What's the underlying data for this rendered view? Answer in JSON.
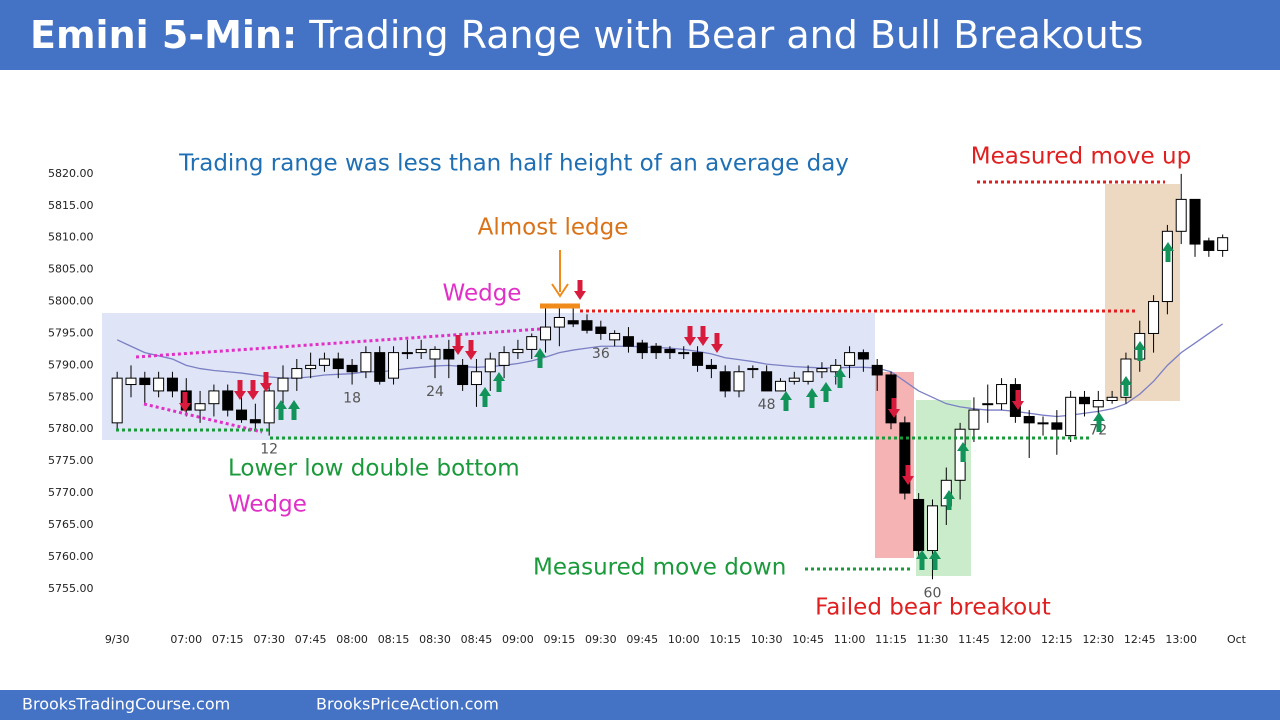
{
  "header": {
    "title_bold": "Emini 5-Min:",
    "title_rest": "Trading Range with Bear and Bull Breakouts"
  },
  "footer": {
    "left": "BrooksTradingCourse.com",
    "right": "BrooksPriceAction.com"
  },
  "chart_data": {
    "type": "candlestick",
    "x": [
      1,
      2,
      3,
      4,
      5,
      6,
      7,
      8,
      9,
      10,
      11,
      12,
      13,
      14,
      15,
      16,
      17,
      18,
      19,
      20,
      21,
      22,
      23,
      24,
      25,
      26,
      27,
      28,
      29,
      30,
      31,
      32,
      33,
      34,
      35,
      36,
      37,
      38,
      39,
      40,
      41,
      42,
      43,
      44,
      45,
      46,
      47,
      48,
      49,
      50,
      51,
      52,
      53,
      54,
      55,
      56,
      57,
      58,
      59,
      60,
      61,
      62,
      63,
      64,
      65,
      66,
      67,
      68,
      69,
      70,
      71,
      72,
      73,
      74,
      75,
      76,
      77,
      78,
      79,
      80,
      81
    ],
    "open": [
      5781,
      5787,
      5788,
      5786,
      5788,
      5786,
      5783,
      5784,
      5786,
      5783,
      5781.5,
      5781,
      5786,
      5788,
      5789.5,
      5790,
      5791,
      5790,
      5789,
      5792,
      5788,
      5792,
      5792,
      5791,
      5792.5,
      5790,
      5787,
      5789,
      5790,
      5792,
      5792.5,
      5794,
      5796,
      5797,
      5797,
      5796,
      5794,
      5794.5,
      5793.5,
      5793,
      5792.5,
      5792,
      5792,
      5790,
      5789,
      5786,
      5789.5,
      5789,
      5786,
      5787.5,
      5787.5,
      5789,
      5789,
      5790,
      5792,
      5790,
      5788.5,
      5781,
      5769,
      5761,
      5768,
      5772,
      5780,
      5784,
      5784,
      5787,
      5782,
      5781,
      5781,
      5779,
      5785,
      5783.5,
      5784.5,
      5785,
      5791,
      5795,
      5800,
      5811,
      5816,
      5809.5,
      5808
    ],
    "high": [
      5789,
      5790,
      5789,
      5789,
      5789,
      5788,
      5786,
      5787,
      5787,
      5785,
      5784,
      5787,
      5790,
      5791,
      5792,
      5792,
      5792,
      5791,
      5793,
      5793,
      5793,
      5794,
      5794,
      5793,
      5794,
      5791,
      5791,
      5792,
      5793,
      5794,
      5795,
      5799,
      5799,
      5799,
      5798,
      5797,
      5795.5,
      5796,
      5794,
      5793.5,
      5793,
      5793,
      5793,
      5791,
      5790,
      5790,
      5790,
      5790,
      5788,
      5789,
      5790,
      5790.5,
      5791,
      5793,
      5792.5,
      5791,
      5789,
      5782,
      5770,
      5769,
      5774,
      5781,
      5785,
      5787,
      5788,
      5788,
      5783,
      5782,
      5783,
      5786,
      5786,
      5786,
      5786,
      5792,
      5797,
      5801,
      5812,
      5820,
      5816,
      5810,
      5810.5
    ],
    "low": [
      5780,
      5785,
      5784,
      5785,
      5785,
      5782,
      5781,
      5782,
      5782,
      5781,
      5780,
      5779,
      5784,
      5786,
      5788,
      5789,
      5788,
      5787,
      5788,
      5787,
      5787,
      5791,
      5791,
      5788,
      5788,
      5786,
      5783.5,
      5786,
      5788,
      5791,
      5791,
      5792,
      5793,
      5796,
      5795,
      5794,
      5793,
      5792,
      5791,
      5791,
      5791,
      5791,
      5789,
      5788,
      5785,
      5785,
      5788,
      5786,
      5786,
      5787,
      5787,
      5788,
      5787,
      5788,
      5789,
      5786,
      5780,
      5769,
      5760,
      5756.5,
      5765,
      5769,
      5778,
      5781,
      5783,
      5781,
      5775.5,
      5779,
      5776,
      5778,
      5782,
      5782,
      5784,
      5784,
      5789,
      5792,
      5798,
      5809,
      5807,
      5807,
      5807
    ],
    "close": [
      5788,
      5788,
      5787,
      5788,
      5786,
      5783,
      5784,
      5786,
      5783,
      5781.5,
      5781,
      5786,
      5788,
      5789.5,
      5790,
      5791,
      5789.5,
      5789,
      5792,
      5787.5,
      5792,
      5792,
      5792.5,
      5792.5,
      5791,
      5787,
      5789,
      5791,
      5792,
      5792.5,
      5794.5,
      5796,
      5797.5,
      5796.5,
      5795.5,
      5795,
      5795,
      5793,
      5792,
      5792,
      5792,
      5792,
      5790,
      5789.5,
      5786,
      5789,
      5789.5,
      5786,
      5787.5,
      5788,
      5789,
      5789.5,
      5790,
      5792,
      5791,
      5788.5,
      5781,
      5770,
      5761,
      5768,
      5772,
      5780,
      5783,
      5784,
      5787,
      5782,
      5781,
      5781,
      5780,
      5785,
      5784,
      5784.5,
      5785,
      5791,
      5795,
      5800,
      5811,
      5816,
      5809,
      5808,
      5810
    ],
    "up_color": "#ffffff",
    "down_color": "#000000",
    "ma": {
      "color": "#7b7fc4",
      "values": [
        5794,
        5793,
        5792,
        5791.5,
        5791,
        5790,
        5789.5,
        5789.2,
        5789,
        5788.8,
        5788.5,
        5788.2,
        5788,
        5788,
        5788.2,
        5788.5,
        5788.6,
        5788.7,
        5789,
        5789,
        5789.2,
        5789.5,
        5789.7,
        5789.9,
        5790,
        5789.8,
        5789.7,
        5789.8,
        5790,
        5790.3,
        5790.7,
        5791.3,
        5792,
        5792.4,
        5792.7,
        5793,
        5793,
        5793,
        5792.9,
        5792.8,
        5792.7,
        5792.5,
        5792.2,
        5791.8,
        5791.2,
        5790.9,
        5790.6,
        5790.2,
        5790,
        5789.8,
        5789.7,
        5789.6,
        5789.6,
        5789.7,
        5789.7,
        5789.6,
        5789,
        5787.5,
        5786,
        5785,
        5784,
        5783.5,
        5783.2,
        5783,
        5783,
        5782.8,
        5782.5,
        5782.2,
        5782,
        5782.2,
        5782.5,
        5782.8,
        5783.2,
        5784,
        5785.5,
        5787.5,
        5790,
        5792,
        5793.5,
        5795,
        5796.5
      ]
    },
    "bar_labels": [
      12,
      18,
      24,
      36,
      48,
      60,
      72
    ],
    "xlim": [
      0,
      83
    ],
    "xticks": [
      {
        "value": 1,
        "label": "9/30"
      },
      {
        "value": 6,
        "label": "07:00"
      },
      {
        "value": 9,
        "label": "07:15"
      },
      {
        "value": 12,
        "label": "07:30"
      },
      {
        "value": 15,
        "label": "07:45"
      },
      {
        "value": 18,
        "label": "08:00"
      },
      {
        "value": 21,
        "label": "08:15"
      },
      {
        "value": 24,
        "label": "08:30"
      },
      {
        "value": 27,
        "label": "08:45"
      },
      {
        "value": 30,
        "label": "09:00"
      },
      {
        "value": 33,
        "label": "09:15"
      },
      {
        "value": 36,
        "label": "09:30"
      },
      {
        "value": 39,
        "label": "09:45"
      },
      {
        "value": 42,
        "label": "10:00"
      },
      {
        "value": 45,
        "label": "10:15"
      },
      {
        "value": 48,
        "label": "10:30"
      },
      {
        "value": 51,
        "label": "10:45"
      },
      {
        "value": 54,
        "label": "11:00"
      },
      {
        "value": 57,
        "label": "11:15"
      },
      {
        "value": 60,
        "label": "11:30"
      },
      {
        "value": 63,
        "label": "11:45"
      },
      {
        "value": 66,
        "label": "12:00"
      },
      {
        "value": 69,
        "label": "12:15"
      },
      {
        "value": 72,
        "label": "12:30"
      },
      {
        "value": 75,
        "label": "12:45"
      },
      {
        "value": 78,
        "label": "13:00"
      },
      {
        "value": 82,
        "label": "Oct"
      }
    ],
    "ylim": [
      5752,
      5830
    ],
    "yticks": [
      {
        "value": 5820,
        "label": "5820.00"
      },
      {
        "value": 5815,
        "label": "5815.00"
      },
      {
        "value": 5810,
        "label": "5810.00"
      },
      {
        "value": 5805,
        "label": "5805.00"
      },
      {
        "value": 5800,
        "label": "5800.00"
      },
      {
        "value": 5795,
        "label": "5795.00"
      },
      {
        "value": 5790,
        "label": "5790.00"
      },
      {
        "value": 5785,
        "label": "5785.00"
      },
      {
        "value": 5780,
        "label": "5780.00"
      },
      {
        "value": 5775,
        "label": "5775.00"
      },
      {
        "value": 5770,
        "label": "5770.00"
      },
      {
        "value": 5765,
        "label": "5765.00"
      },
      {
        "value": 5760,
        "label": "5760.00"
      },
      {
        "value": 5755,
        "label": "5755.00"
      }
    ],
    "annotations": [
      "Trading range was less than half height of an average day",
      "Measured move up",
      "Almost ledge",
      "Wedge",
      "Lower low double bottom",
      "Wedge",
      "Measured move down",
      "Failed bear breakout"
    ]
  }
}
